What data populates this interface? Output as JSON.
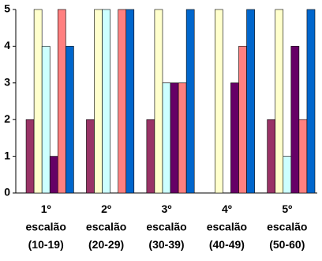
{
  "chart_data": {
    "type": "bar",
    "categories": [
      "1º escalão (10-19)",
      "2º escalão (20-29)",
      "3º escalão (30-39)",
      "4º escalão (40-49)",
      "5º escalão (50-60)"
    ],
    "series": [
      {
        "color": "#9999ff",
        "values": [
          0,
          0,
          0,
          0,
          0
        ]
      },
      {
        "color": "#993366",
        "values": [
          2,
          2,
          2,
          0,
          2
        ]
      },
      {
        "color": "#ffffcc",
        "values": [
          5,
          5,
          5,
          5,
          5
        ]
      },
      {
        "color": "#ccffff",
        "values": [
          4,
          5,
          3,
          0,
          1
        ]
      },
      {
        "color": "#660066",
        "values": [
          1,
          0,
          3,
          3,
          4
        ]
      },
      {
        "color": "#ff8080",
        "values": [
          5,
          5,
          3,
          4,
          2
        ]
      },
      {
        "color": "#0066cc",
        "values": [
          4,
          5,
          5,
          5,
          5
        ]
      }
    ],
    "ylim": [
      0,
      5
    ],
    "yticks": [
      0,
      1,
      2,
      3,
      4,
      5
    ],
    "grid": false
  }
}
